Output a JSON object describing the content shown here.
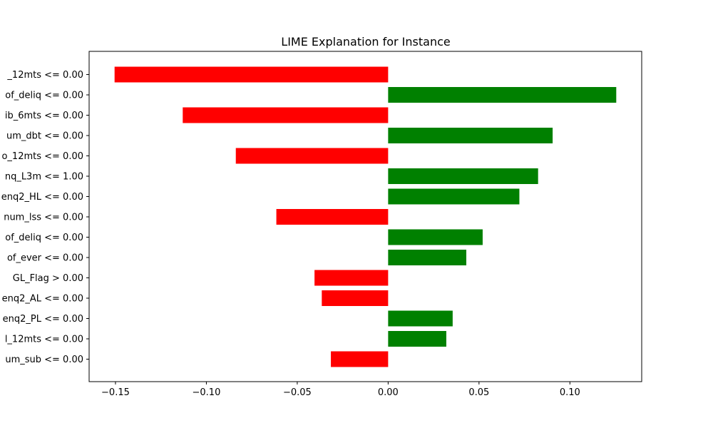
{
  "chart_data": {
    "type": "bar",
    "orientation": "horizontal",
    "title": "LIME Explanation for Instance",
    "xlabel": "",
    "ylabel": "",
    "xlim": [
      -0.1645,
      0.1395
    ],
    "xticks": [
      -0.15,
      -0.1,
      -0.05,
      0.0,
      0.05,
      0.1
    ],
    "xtick_labels": [
      "−0.15",
      "−0.10",
      "−0.05",
      "0.00",
      "0.05",
      "0.10"
    ],
    "grid": false,
    "legend": "none",
    "colors": {
      "positive": "#008000",
      "negative": "#ff0000"
    },
    "categories": [
      "_12mts <= 0.00",
      "of_deliq <= 0.00",
      "ib_6mts <= 0.00",
      "um_dbt <= 0.00",
      "o_12mts <= 0.00",
      "nq_L3m <= 1.00",
      "enq2_HL <= 0.00",
      "num_lss <= 0.00",
      "of_deliq <= 0.00",
      "of_ever <= 0.00",
      "GL_Flag > 0.00",
      "enq2_AL <= 0.00",
      "enq2_PL <= 0.00",
      "l_12mts <= 0.00",
      "um_sub <= 0.00"
    ],
    "values": [
      -0.1505,
      0.1255,
      -0.113,
      0.0905,
      -0.0838,
      0.0825,
      0.0722,
      -0.0615,
      0.052,
      0.043,
      -0.0405,
      -0.0365,
      0.0355,
      0.032,
      -0.0315
    ]
  }
}
